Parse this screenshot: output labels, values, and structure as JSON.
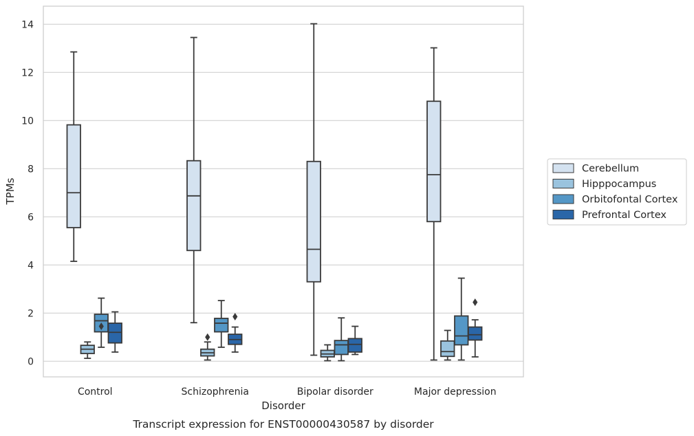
{
  "chart_data": {
    "type": "box",
    "xlabel": "Disorder",
    "ylabel": "TPMs",
    "caption": "Transcript expression for ENST00000430587 by disorder",
    "ylim": [
      -0.65,
      14.75
    ],
    "yticks": [
      0,
      2,
      4,
      6,
      8,
      10,
      12,
      14
    ],
    "grid": "horizontal",
    "legend_position": "right",
    "categories": [
      "Control",
      "Schizophrenia",
      "Bipolar disorder",
      "Major depression"
    ],
    "series": [
      {
        "name": "Cerebellum",
        "color": "#d4e2f0",
        "boxes": [
          {
            "whislo": 4.15,
            "q1": 5.55,
            "med": 7.0,
            "q3": 9.82,
            "whishi": 12.85,
            "fliers": []
          },
          {
            "whislo": 1.6,
            "q1": 4.6,
            "med": 6.87,
            "q3": 8.33,
            "whishi": 13.45,
            "fliers": []
          },
          {
            "whislo": 0.25,
            "q1": 3.3,
            "med": 4.65,
            "q3": 8.3,
            "whishi": 14.02,
            "fliers": []
          },
          {
            "whislo": 0.05,
            "q1": 5.8,
            "med": 7.75,
            "q3": 10.8,
            "whishi": 13.02,
            "fliers": []
          }
        ]
      },
      {
        "name": "Hipppocampus",
        "color": "#9ac3de",
        "boxes": [
          {
            "whislo": 0.12,
            "q1": 0.32,
            "med": 0.5,
            "q3": 0.66,
            "whishi": 0.8,
            "fliers": []
          },
          {
            "whislo": 0.05,
            "q1": 0.22,
            "med": 0.35,
            "q3": 0.5,
            "whishi": 0.8,
            "fliers": [
              1.0
            ]
          },
          {
            "whislo": 0.02,
            "q1": 0.18,
            "med": 0.3,
            "q3": 0.45,
            "whishi": 0.68,
            "fliers": []
          },
          {
            "whislo": 0.05,
            "q1": 0.2,
            "med": 0.4,
            "q3": 0.84,
            "whishi": 1.28,
            "fliers": []
          }
        ]
      },
      {
        "name": "Orbitofontal Cortex",
        "color": "#5497c6",
        "boxes": [
          {
            "whislo": 0.58,
            "q1": 1.22,
            "med": 1.68,
            "q3": 1.95,
            "whishi": 2.62,
            "fliers": [
              1.45
            ]
          },
          {
            "whislo": 0.58,
            "q1": 1.22,
            "med": 1.58,
            "q3": 1.78,
            "whishi": 2.52,
            "fliers": []
          },
          {
            "whislo": 0.02,
            "q1": 0.28,
            "med": 0.68,
            "q3": 0.86,
            "whishi": 1.8,
            "fliers": []
          },
          {
            "whislo": 0.05,
            "q1": 0.68,
            "med": 1.05,
            "q3": 1.88,
            "whishi": 3.45,
            "fliers": []
          }
        ]
      },
      {
        "name": "Prefrontal Cortex",
        "color": "#2a66a8",
        "boxes": [
          {
            "whislo": 0.38,
            "q1": 0.76,
            "med": 1.2,
            "q3": 1.58,
            "whishi": 2.05,
            "fliers": []
          },
          {
            "whislo": 0.38,
            "q1": 0.7,
            "med": 0.9,
            "q3": 1.12,
            "whishi": 1.42,
            "fliers": [
              1.85
            ]
          },
          {
            "whislo": 0.28,
            "q1": 0.38,
            "med": 0.7,
            "q3": 0.94,
            "whishi": 1.45,
            "fliers": []
          },
          {
            "whislo": 0.18,
            "q1": 0.88,
            "med": 1.1,
            "q3": 1.42,
            "whishi": 1.72,
            "fliers": [
              2.45
            ]
          }
        ]
      }
    ]
  }
}
